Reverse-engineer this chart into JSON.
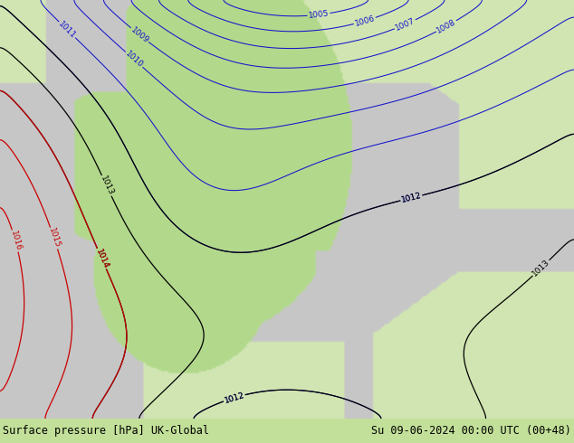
{
  "title_left": "Surface pressure [hPa] UK-Global",
  "title_right": "Su 09-06-2024 00:00 UTC (00+48)",
  "fig_width": 6.34,
  "fig_height": 4.9,
  "dpi": 100,
  "color_sea": [
    0.78,
    0.78,
    0.78
  ],
  "color_land_green": [
    0.7,
    0.85,
    0.55
  ],
  "color_land_light": [
    0.82,
    0.9,
    0.7
  ],
  "color_footer_bg": [
    0.76,
    0.88,
    0.6
  ],
  "isobar_blue": "#1414cc",
  "isobar_black": "#000000",
  "isobar_red": "#cc0000",
  "label_fontsize": 6.5,
  "footer_fontsize": 8.5
}
